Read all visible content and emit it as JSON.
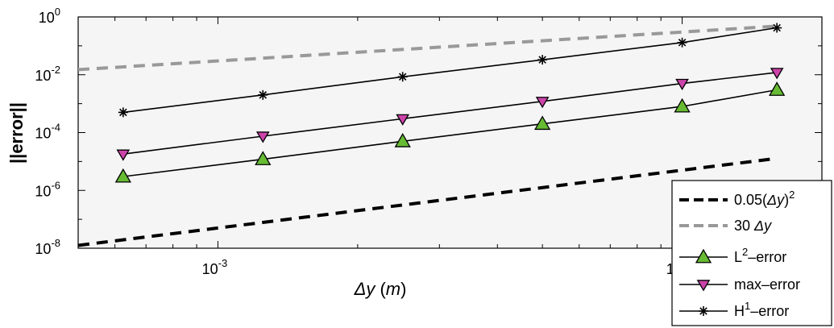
{
  "chart_data": {
    "type": "line",
    "title": "",
    "xlabel": "Δy (m)",
    "ylabel": "||error||",
    "xscale": "log",
    "yscale": "log",
    "xlim": [
      0.0005,
      0.02
    ],
    "ylim": [
      1e-08,
      1
    ],
    "grid": false,
    "legend_position": "bottom-right",
    "x_ticks": [
      {
        "value": 0.001,
        "label": "10",
        "exp": "-3"
      },
      {
        "value": 0.01,
        "label": "10",
        "exp": "-2"
      }
    ],
    "y_ticks": [
      {
        "value": 1e-08,
        "label": "10",
        "exp": "-8"
      },
      {
        "value": 1e-06,
        "label": "10",
        "exp": "-6"
      },
      {
        "value": 0.0001,
        "label": "10",
        "exp": "-4"
      },
      {
        "value": 0.01,
        "label": "10",
        "exp": "-2"
      },
      {
        "value": 1,
        "label": "10",
        "exp": "0"
      }
    ],
    "series": [
      {
        "name": "0.05(Δy)²",
        "legend": {
          "base": "0.05(",
          "var": "Δy",
          "close": ")",
          "sup": "2",
          "tail": ""
        },
        "style": "dashed",
        "color": "#000000",
        "marker": "none",
        "x": [
          0.0005,
          0.016
        ],
        "y": [
          1.25e-08,
          1.28e-05
        ]
      },
      {
        "name": "30 Δy",
        "legend": {
          "base": "30 ",
          "var": "Δy",
          "close": "",
          "sup": "",
          "tail": ""
        },
        "style": "dashed",
        "color": "#999999",
        "marker": "none",
        "x": [
          0.0005,
          0.016
        ],
        "y": [
          0.015,
          0.48
        ]
      },
      {
        "name": "L²-error",
        "legend": {
          "base": "L",
          "var": "",
          "close": "",
          "sup": "2",
          "tail": "–error"
        },
        "style": "solid",
        "color": "#000000",
        "marker": "triangle-up",
        "marker_color": "#66bb33",
        "x": [
          0.000625,
          0.00125,
          0.0025,
          0.005,
          0.01,
          0.016
        ],
        "y": [
          3e-06,
          1.2e-05,
          5e-05,
          0.0002,
          0.0008,
          0.003
        ]
      },
      {
        "name": "max-error",
        "legend": {
          "base": "max–error",
          "var": "",
          "close": "",
          "sup": "",
          "tail": ""
        },
        "style": "solid",
        "color": "#000000",
        "marker": "triangle-down",
        "marker_color": "#cc44aa",
        "x": [
          0.000625,
          0.00125,
          0.0025,
          0.005,
          0.01,
          0.016
        ],
        "y": [
          1.8e-05,
          7.5e-05,
          0.0003,
          0.0012,
          0.005,
          0.012
        ]
      },
      {
        "name": "H¹-error",
        "legend": {
          "base": "H",
          "var": "",
          "close": "",
          "sup": "1",
          "tail": "–error"
        },
        "style": "solid",
        "color": "#000000",
        "marker": "asterisk",
        "marker_color": "#000000",
        "x": [
          0.000625,
          0.00125,
          0.0025,
          0.005,
          0.01,
          0.016
        ],
        "y": [
          0.0005,
          0.002,
          0.0085,
          0.033,
          0.13,
          0.42
        ]
      }
    ]
  }
}
